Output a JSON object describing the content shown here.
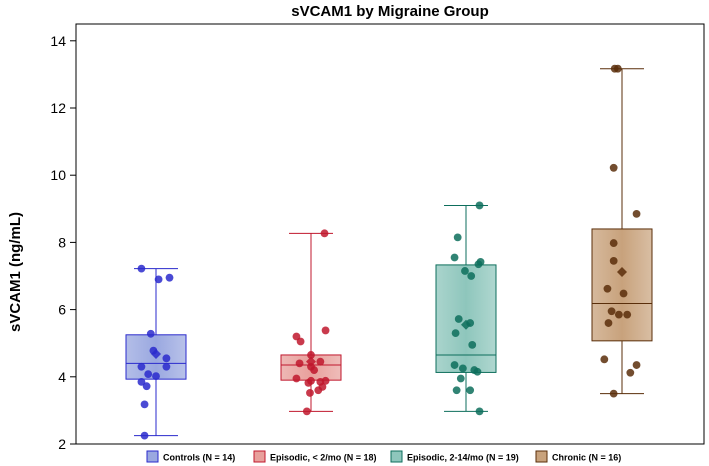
{
  "chart_data": {
    "type": "box",
    "title": "sVCAM1 by Migraine Group",
    "xlabel": "",
    "ylabel": "sVCAM1 (ng/mL)",
    "ylim": [
      2,
      14.5
    ],
    "yticks": [
      2,
      4,
      6,
      8,
      10,
      12,
      14
    ],
    "grid": false,
    "legend": "bottom",
    "groups": [
      {
        "name": "Controls (N = 14)",
        "color": "#2a2acc",
        "fill": "#9aa8e0",
        "whisker_low": 2.25,
        "q1": 3.93,
        "median": 4.4,
        "q3": 5.25,
        "whisker_high": 7.22,
        "mean": 4.68,
        "points": [
          [
            -0.28,
            7.22
          ],
          [
            0.05,
            6.9
          ],
          [
            0.26,
            6.95
          ],
          [
            -0.1,
            5.28
          ],
          [
            -0.05,
            4.78
          ],
          [
            0.2,
            4.55
          ],
          [
            -0.28,
            4.3
          ],
          [
            0.2,
            4.3
          ],
          [
            -0.15,
            4.08
          ],
          [
            0.0,
            4.02
          ],
          [
            -0.28,
            3.85
          ],
          [
            -0.18,
            3.72
          ],
          [
            -0.22,
            3.18
          ],
          [
            -0.22,
            2.25
          ]
        ]
      },
      {
        "name": "Episodic, < 2/mo (N = 18)",
        "color": "#c0172d",
        "fill": "#e8a09c",
        "whisker_low": 2.97,
        "q1": 3.9,
        "median": 4.35,
        "q3": 4.65,
        "whisker_high": 8.27,
        "mean": 4.45,
        "points": [
          [
            0.26,
            8.27
          ],
          [
            0.28,
            5.38
          ],
          [
            -0.28,
            5.2
          ],
          [
            -0.2,
            5.05
          ],
          [
            0.0,
            4.65
          ],
          [
            0.18,
            4.45
          ],
          [
            -0.22,
            4.4
          ],
          [
            0.0,
            4.3
          ],
          [
            0.06,
            4.2
          ],
          [
            -0.28,
            3.95
          ],
          [
            0.0,
            3.88
          ],
          [
            0.28,
            3.88
          ],
          [
            0.18,
            3.85
          ],
          [
            -0.05,
            3.82
          ],
          [
            0.22,
            3.7
          ],
          [
            0.14,
            3.6
          ],
          [
            -0.02,
            3.52
          ],
          [
            -0.08,
            2.97
          ]
        ]
      },
      {
        "name": "Episodic, 2-14/mo (N = 19)",
        "color": "#0d6e5c",
        "fill": "#8ec6bc",
        "whisker_low": 2.97,
        "q1": 4.13,
        "median": 4.65,
        "q3": 7.33,
        "whisker_high": 9.1,
        "mean": 5.55,
        "points": [
          [
            0.26,
            9.1
          ],
          [
            -0.16,
            8.15
          ],
          [
            -0.22,
            7.55
          ],
          [
            0.28,
            7.42
          ],
          [
            0.24,
            7.35
          ],
          [
            -0.02,
            7.15
          ],
          [
            0.1,
            7.0
          ],
          [
            -0.14,
            5.72
          ],
          [
            0.08,
            5.6
          ],
          [
            -0.2,
            5.3
          ],
          [
            0.12,
            4.95
          ],
          [
            -0.22,
            4.35
          ],
          [
            -0.06,
            4.25
          ],
          [
            0.16,
            4.2
          ],
          [
            0.22,
            4.15
          ],
          [
            -0.1,
            3.95
          ],
          [
            -0.18,
            3.6
          ],
          [
            0.08,
            3.6
          ],
          [
            0.26,
            2.97
          ]
        ]
      },
      {
        "name": "Chronic (N = 16)",
        "color": "#5a2e0a",
        "fill": "#c8a27c",
        "whisker_low": 3.5,
        "q1": 5.07,
        "median": 6.18,
        "q3": 8.4,
        "whisker_high": 13.17,
        "mean": 7.12,
        "points": [
          [
            -0.14,
            13.17
          ],
          [
            -0.08,
            13.17
          ],
          [
            -0.16,
            10.22
          ],
          [
            0.28,
            8.85
          ],
          [
            -0.16,
            7.98
          ],
          [
            -0.16,
            7.45
          ],
          [
            -0.28,
            6.62
          ],
          [
            0.03,
            6.48
          ],
          [
            -0.2,
            5.95
          ],
          [
            0.1,
            5.85
          ],
          [
            -0.06,
            5.85
          ],
          [
            -0.26,
            5.6
          ],
          [
            -0.34,
            4.52
          ],
          [
            0.28,
            4.35
          ],
          [
            0.16,
            4.12
          ],
          [
            -0.16,
            3.5
          ]
        ]
      }
    ]
  }
}
